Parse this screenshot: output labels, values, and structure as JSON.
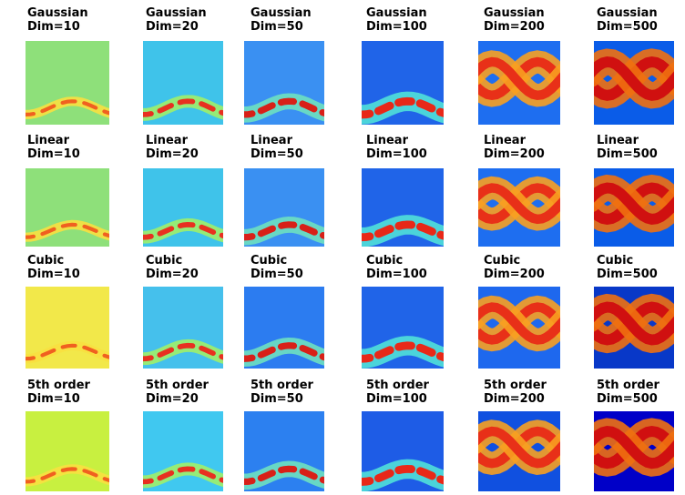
{
  "rows": [
    {
      "cells": [
        {
          "method": "Gaussian",
          "dim": "Dim=10"
        },
        {
          "method": "Gaussian",
          "dim": "Dim=20"
        },
        {
          "method": "Gaussian",
          "dim": "Dim=50"
        },
        {
          "method": "Gaussian",
          "dim": "Dim=100"
        },
        {
          "method": "Gaussian",
          "dim": "Dim=200"
        },
        {
          "method": "Gaussian",
          "dim": "Dim=500"
        }
      ]
    },
    {
      "cells": [
        {
          "method": "Linear",
          "dim": "Dim=10"
        },
        {
          "method": "Linear",
          "dim": "Dim=20"
        },
        {
          "method": "Linear",
          "dim": "Dim=50"
        },
        {
          "method": "Linear",
          "dim": "Dim=100"
        },
        {
          "method": "Linear",
          "dim": "Dim=200"
        },
        {
          "method": "Linear",
          "dim": "Dim=500"
        }
      ]
    },
    {
      "cells": [
        {
          "method": "Cubic",
          "dim": "Dim=10"
        },
        {
          "method": "Cubic",
          "dim": "Dim=20"
        },
        {
          "method": "Cubic",
          "dim": "Dim=50"
        },
        {
          "method": "Cubic",
          "dim": "Dim=100"
        },
        {
          "method": "Cubic",
          "dim": "Dim=200"
        },
        {
          "method": "Cubic",
          "dim": "Dim=500"
        }
      ]
    },
    {
      "cells": [
        {
          "method": "5th order",
          "dim": "Dim=10"
        },
        {
          "method": "5th order",
          "dim": "Dim=20"
        },
        {
          "method": "5th order",
          "dim": "Dim=50"
        },
        {
          "method": "5th order",
          "dim": "Dim=100"
        },
        {
          "method": "5th order",
          "dim": "Dim=200"
        },
        {
          "method": "5th order",
          "dim": "Dim=500"
        }
      ]
    }
  ]
}
